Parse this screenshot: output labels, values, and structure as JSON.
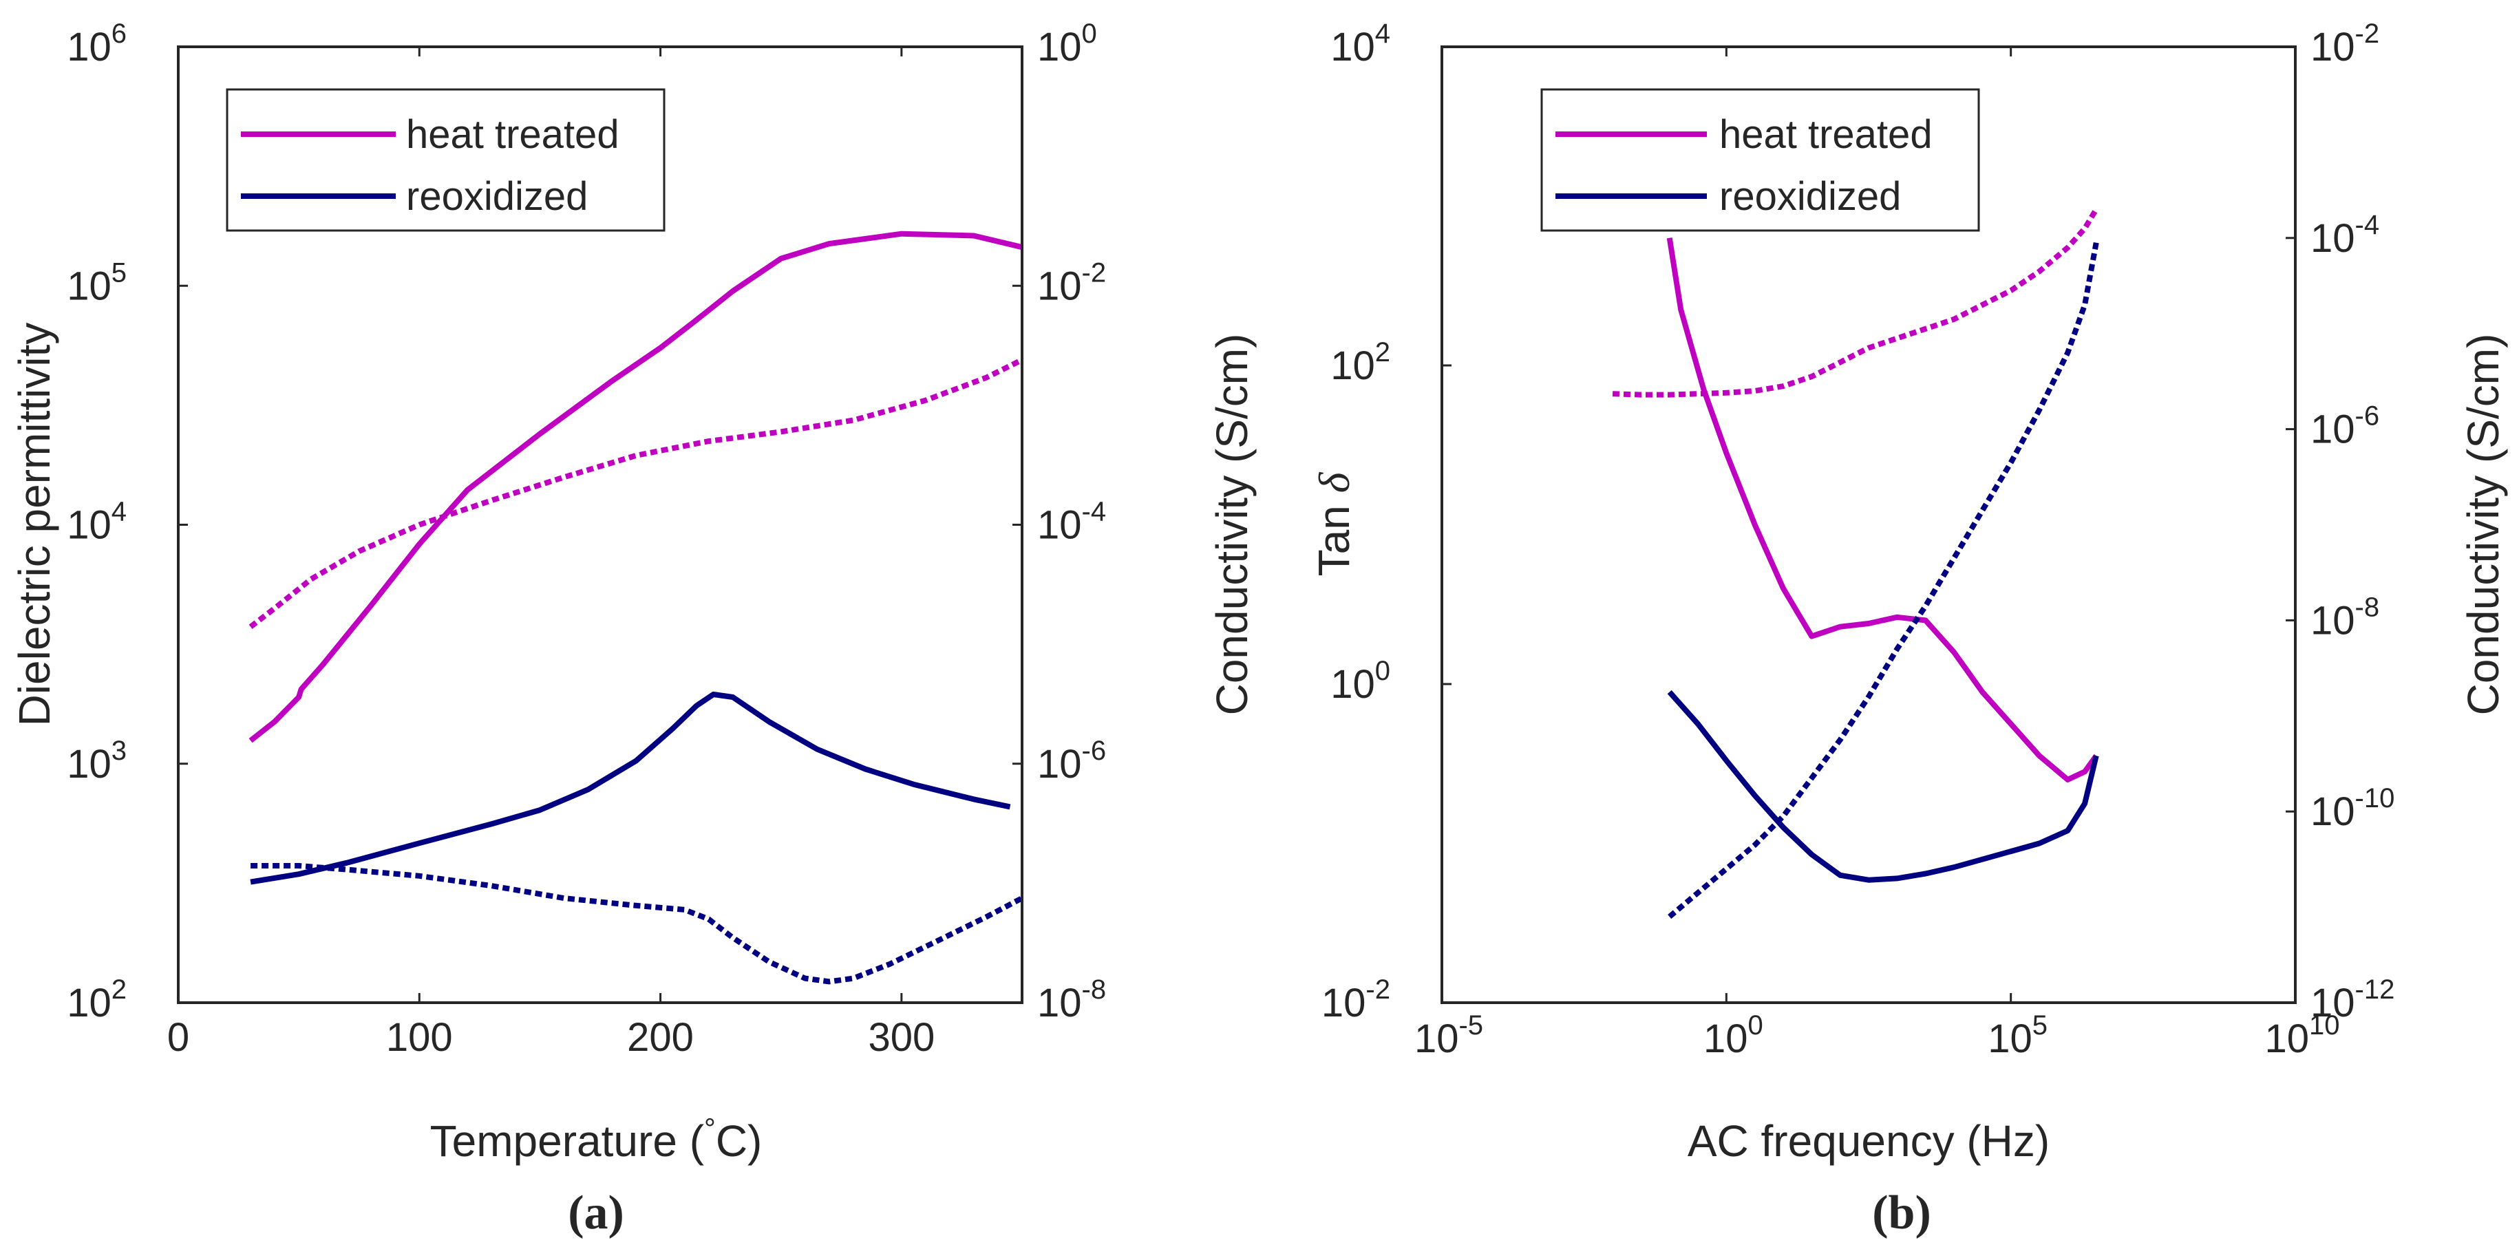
{
  "chart_data": [
    {
      "type": "line",
      "panel_label": "(a)",
      "xlabel": "Temperature (°C)",
      "xlabel_main": "Temperature (",
      "xlabel_unit_sup": "°",
      "xlabel_unit_tail": "C)",
      "ylabel": "Dielectric permittivity",
      "ylabel_right": "Conductivity (S/cm)",
      "xlim": [
        0,
        350
      ],
      "ylim_log10": [
        2,
        6
      ],
      "ylim_right_log10": [
        -8,
        0
      ],
      "x_ticks": [
        {
          "value": 0,
          "label": "0"
        },
        {
          "value": 100,
          "label": "100"
        },
        {
          "value": 200,
          "label": "200"
        },
        {
          "value": 300,
          "label": "300"
        }
      ],
      "y_ticks": [
        {
          "exp": 2,
          "base": "10",
          "sup": "2"
        },
        {
          "exp": 3,
          "base": "10",
          "sup": "3"
        },
        {
          "exp": 4,
          "base": "10",
          "sup": "4"
        },
        {
          "exp": 5,
          "base": "10",
          "sup": "5"
        },
        {
          "exp": 6,
          "base": "10",
          "sup": "6"
        }
      ],
      "y_ticks_right": [
        {
          "exp": -8,
          "base": "10",
          "sup": "-8"
        },
        {
          "exp": -6,
          "base": "10",
          "sup": "-6"
        },
        {
          "exp": -4,
          "base": "10",
          "sup": "-4"
        },
        {
          "exp": -2,
          "base": "10",
          "sup": "-2"
        },
        {
          "exp": 0,
          "base": "10",
          "sup": "0"
        }
      ],
      "legend": [
        {
          "label": "heat treated",
          "color": "#C000C0"
        },
        {
          "label": "reoxidized",
          "color": "#000080"
        }
      ],
      "legend_location": "top-left",
      "series": [
        {
          "name": "heat treated",
          "quantity": "Dielectric permittivity",
          "axis": "left",
          "style": "solid",
          "color": "#C000C0",
          "x": [
            30,
            40,
            50,
            51,
            60,
            80,
            100,
            120,
            150,
            180,
            200,
            215,
            230,
            250,
            270,
            300,
            330,
            350
          ],
          "y": [
            1250,
            1500,
            1900,
            2050,
            2600,
            4600,
            8300,
            14000,
            24000,
            40000,
            55000,
            72000,
            95000,
            130000,
            150000,
            165000,
            162000,
            145000
          ]
        },
        {
          "name": "heat treated",
          "quantity": "Conductivity",
          "axis": "right",
          "style": "dotted",
          "color": "#C000C0",
          "x": [
            30,
            40,
            55,
            75,
            100,
            130,
            160,
            190,
            220,
            250,
            280,
            310,
            335,
            350
          ],
          "y": [
            1.4e-05,
            2e-05,
            3.5e-05,
            6e-05,
            0.0001,
            0.00016,
            0.00025,
            0.00038,
            0.0005,
            0.0006,
            0.00075,
            0.0011,
            0.0017,
            0.0024
          ]
        },
        {
          "name": "reoxidized",
          "quantity": "Dielectric permittivity",
          "axis": "left",
          "style": "solid",
          "color": "#000080",
          "x": [
            30,
            50,
            70,
            100,
            130,
            150,
            170,
            190,
            205,
            215,
            222,
            230,
            245,
            265,
            285,
            305,
            330,
            345
          ],
          "y": [
            320,
            345,
            385,
            465,
            560,
            640,
            780,
            1030,
            1400,
            1750,
            1950,
            1900,
            1500,
            1150,
            950,
            820,
            710,
            660
          ]
        },
        {
          "name": "reoxidized",
          "quantity": "Conductivity",
          "axis": "right",
          "style": "dotted",
          "color": "#000080",
          "x": [
            30,
            50,
            70,
            100,
            130,
            160,
            190,
            210,
            220,
            230,
            245,
            260,
            270,
            280,
            295,
            315,
            335,
            350
          ],
          "y": [
            1.4e-07,
            1.4e-07,
            1.3e-07,
            1.15e-07,
            9.5e-08,
            7.5e-08,
            6.5e-08,
            6e-08,
            5e-08,
            3.5e-08,
            2.2e-08,
            1.6e-08,
            1.5e-08,
            1.6e-08,
            2.1e-08,
            3.3e-08,
            5.2e-08,
            7.5e-08
          ]
        }
      ]
    },
    {
      "type": "line",
      "panel_label": "(b)",
      "xlabel": "AC frequency (Hz)",
      "ylabel": "Tan δ",
      "ylabel_main": "Tan ",
      "ylabel_symbol": "δ",
      "ylabel_right": "Conductivity (S/cm)",
      "xscale": "log",
      "xlim_log10": [
        -5,
        10
      ],
      "ylim_log10": [
        -2,
        4
      ],
      "ylim_right_log10": [
        -12,
        -2
      ],
      "x_ticks": [
        {
          "exp": -5,
          "base": "10",
          "sup": "-5"
        },
        {
          "exp": 0,
          "base": "10",
          "sup": "0"
        },
        {
          "exp": 5,
          "base": "10",
          "sup": "5"
        },
        {
          "exp": 10,
          "base": "10",
          "sup": "10"
        }
      ],
      "y_ticks": [
        {
          "exp": -2,
          "base": "10",
          "sup": "-2"
        },
        {
          "exp": 0,
          "base": "10",
          "sup": "0"
        },
        {
          "exp": 2,
          "base": "10",
          "sup": "2"
        },
        {
          "exp": 4,
          "base": "10",
          "sup": "4"
        }
      ],
      "y_ticks_right": [
        {
          "exp": -12,
          "base": "10",
          "sup": "-12"
        },
        {
          "exp": -10,
          "base": "10",
          "sup": "-10"
        },
        {
          "exp": -8,
          "base": "10",
          "sup": "-8"
        },
        {
          "exp": -6,
          "base": "10",
          "sup": "-6"
        },
        {
          "exp": -4,
          "base": "10",
          "sup": "-4"
        },
        {
          "exp": -2,
          "base": "10",
          "sup": "-2"
        }
      ],
      "legend": [
        {
          "label": "heat treated",
          "color": "#C000C0"
        },
        {
          "label": "reoxidized",
          "color": "#000080"
        }
      ],
      "legend_location": "top-left",
      "series": [
        {
          "name": "heat treated",
          "quantity": "Tan δ",
          "axis": "left",
          "style": "solid",
          "color": "#C000C0",
          "x_log10": [
            -1.0,
            -0.8,
            -0.4,
            0.0,
            0.5,
            1.0,
            1.5,
            2.0,
            2.5,
            3.0,
            3.5,
            4.0,
            4.5,
            5.0,
            5.5,
            6.0,
            6.3,
            6.5
          ],
          "y_log10": [
            2.8,
            2.35,
            1.85,
            1.45,
            1.0,
            0.6,
            0.3,
            0.36,
            0.38,
            0.42,
            0.4,
            0.2,
            -0.05,
            -0.25,
            -0.45,
            -0.6,
            -0.55,
            -0.45
          ]
        },
        {
          "name": "heat treated",
          "quantity": "Conductivity",
          "axis": "right",
          "style": "dotted",
          "color": "#C000C0",
          "x_log10": [
            -2.0,
            -1.5,
            -1.0,
            -0.5,
            0.0,
            0.5,
            1.0,
            1.5,
            2.0,
            2.5,
            3.0,
            3.5,
            4.0,
            4.5,
            5.0,
            5.5,
            6.0,
            6.3,
            6.5
          ],
          "y_log10": [
            -5.63,
            -5.64,
            -5.64,
            -5.63,
            -5.62,
            -5.6,
            -5.55,
            -5.45,
            -5.3,
            -5.15,
            -5.05,
            -4.95,
            -4.85,
            -4.7,
            -4.55,
            -4.35,
            -4.1,
            -3.9,
            -3.7
          ]
        },
        {
          "name": "reoxidized",
          "quantity": "Tan δ",
          "axis": "left",
          "style": "solid",
          "color": "#000080",
          "x_log10": [
            -1.0,
            -0.5,
            0.0,
            0.5,
            1.0,
            1.5,
            2.0,
            2.5,
            3.0,
            3.5,
            4.0,
            4.5,
            5.0,
            5.5,
            6.0,
            6.3,
            6.5
          ],
          "y_log10": [
            -0.05,
            -0.25,
            -0.48,
            -0.7,
            -0.9,
            -1.07,
            -1.2,
            -1.23,
            -1.22,
            -1.19,
            -1.15,
            -1.1,
            -1.05,
            -1.0,
            -0.92,
            -0.75,
            -0.45
          ]
        },
        {
          "name": "reoxidized",
          "quantity": "Conductivity",
          "axis": "right",
          "style": "dotted",
          "color": "#000080",
          "x_log10": [
            -1.0,
            -0.5,
            0.0,
            0.5,
            1.0,
            1.5,
            2.0,
            2.5,
            3.0,
            3.5,
            4.0,
            4.5,
            5.0,
            5.5,
            6.0,
            6.3,
            6.5
          ],
          "y_log10": [
            -11.1,
            -10.85,
            -10.6,
            -10.35,
            -10.05,
            -9.65,
            -9.25,
            -8.8,
            -8.3,
            -7.85,
            -7.35,
            -6.85,
            -6.35,
            -5.8,
            -5.2,
            -4.7,
            -4.05
          ]
        }
      ]
    }
  ]
}
